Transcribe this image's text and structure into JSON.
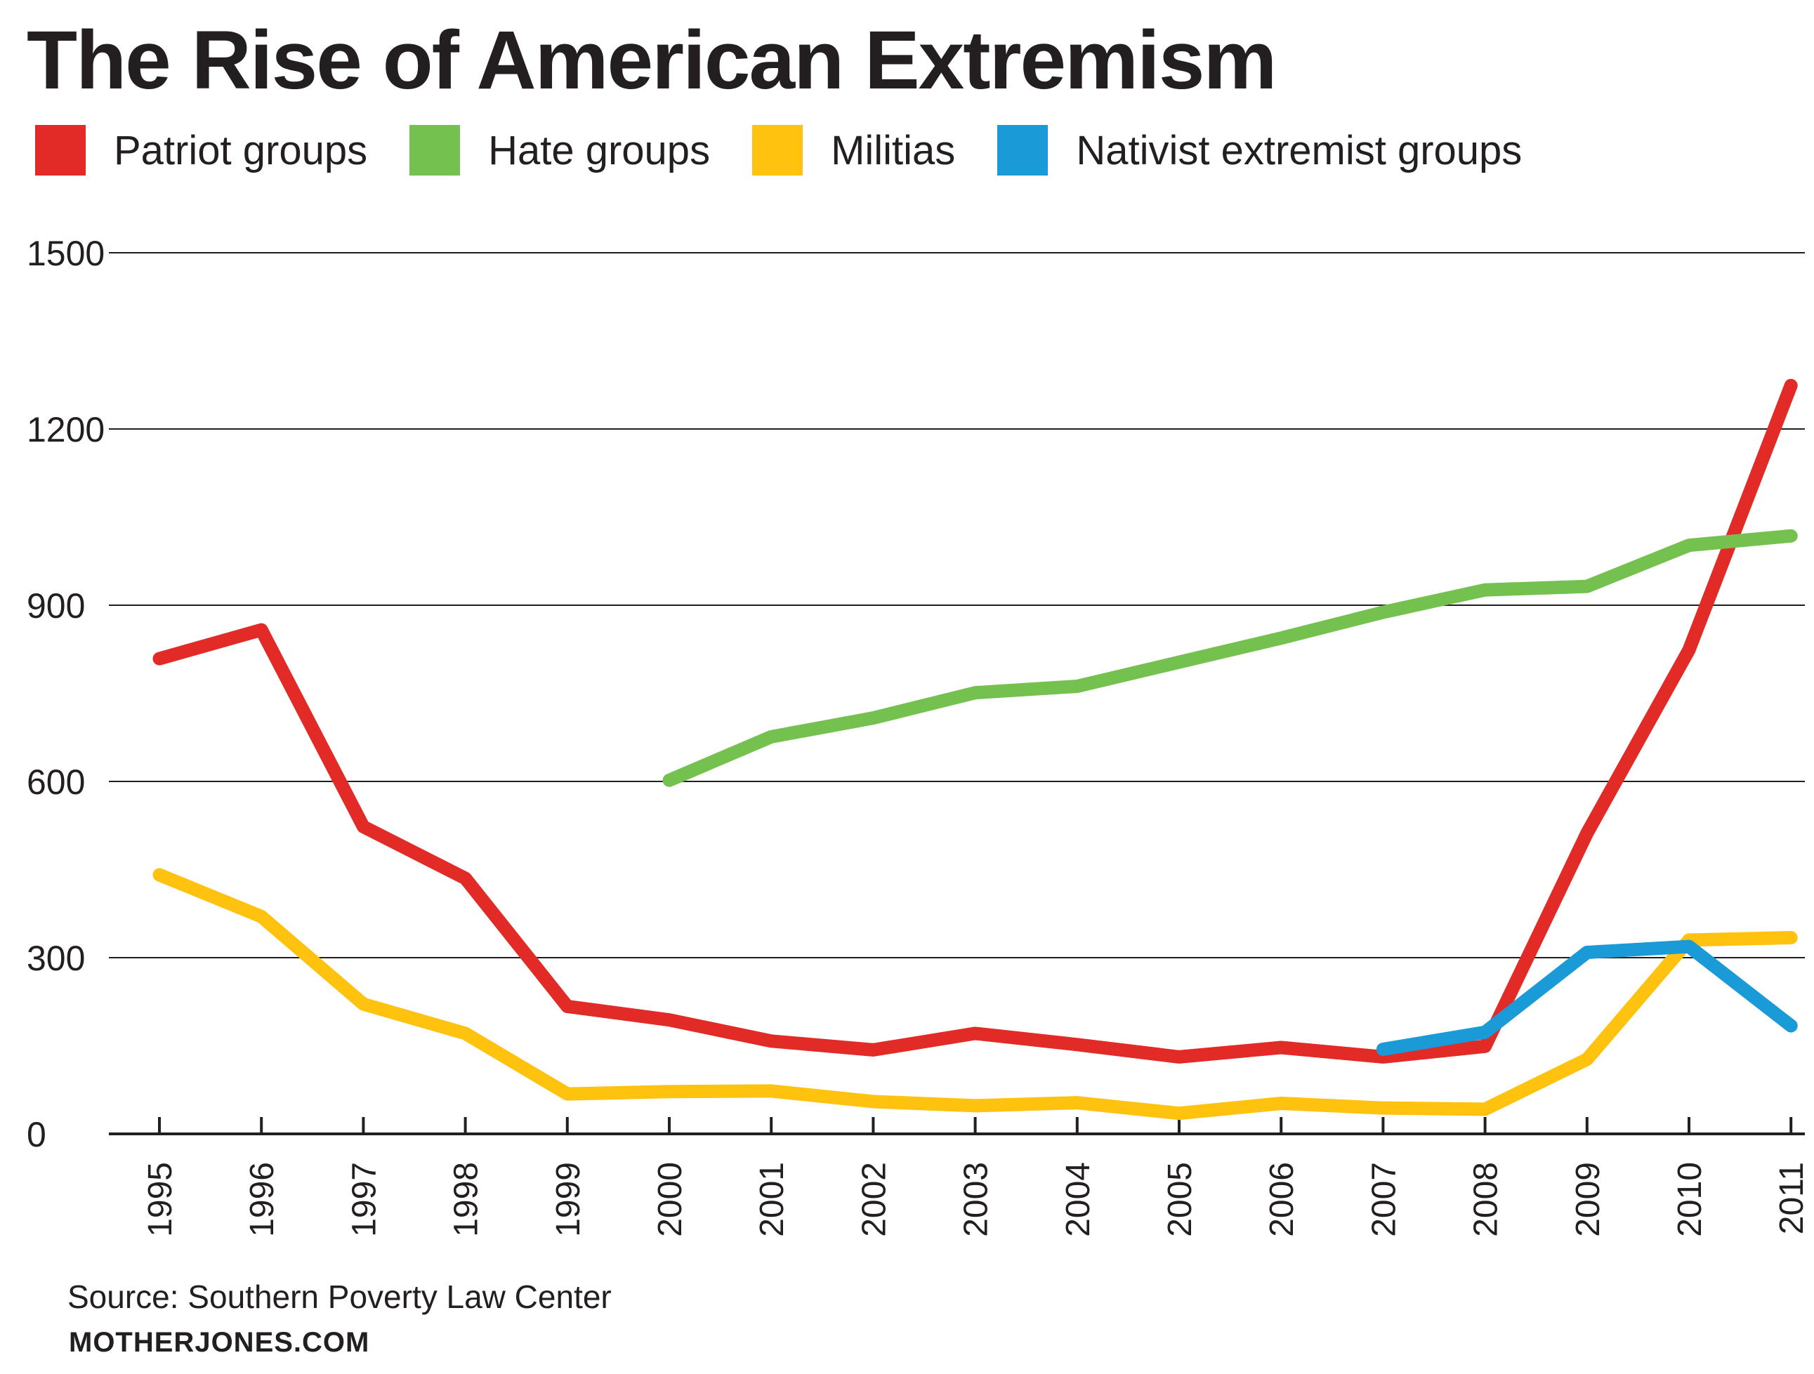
{
  "chart_data": {
    "type": "line",
    "title": "The Rise of American Extremism",
    "x": [
      "1995",
      "1996",
      "1997",
      "1998",
      "1999",
      "2000",
      "2001",
      "2002",
      "2003",
      "2004",
      "2005",
      "2006",
      "2007",
      "2008",
      "2009",
      "2010",
      "2011"
    ],
    "ylim": [
      0,
      1500
    ],
    "yticks": [
      0,
      300,
      600,
      900,
      1200,
      1500
    ],
    "ytick_labels": [
      "0",
      "300",
      "600",
      "900",
      "1200",
      "1500"
    ],
    "grid": true,
    "legend_position": "top",
    "series": [
      {
        "name": "Patriot groups",
        "color": "#e22b26",
        "values": [
          809,
          858,
          523,
          435,
          217,
          194,
          158,
          143,
          171,
          152,
          131,
          147,
          131,
          149,
          512,
          824,
          1274
        ]
      },
      {
        "name": "Hate groups",
        "color": "#75c14f",
        "values": [
          null,
          null,
          null,
          null,
          null,
          602,
          676,
          708,
          751,
          762,
          803,
          844,
          888,
          926,
          932,
          1002,
          1018
        ]
      },
      {
        "name": "Militias",
        "color": "#fec20f",
        "values": [
          441,
          370,
          221,
          171,
          68,
          72,
          73,
          55,
          48,
          53,
          35,
          52,
          44,
          42,
          127,
          330,
          334
        ]
      },
      {
        "name": "Nativist extremist groups",
        "color": "#1a9ad6",
        "values": [
          null,
          null,
          null,
          null,
          null,
          null,
          null,
          null,
          null,
          null,
          null,
          null,
          144,
          173,
          309,
          319,
          184
        ]
      }
    ]
  },
  "source": "Source: Southern Poverty Law Center",
  "brand": "MOTHERJONES.COM"
}
